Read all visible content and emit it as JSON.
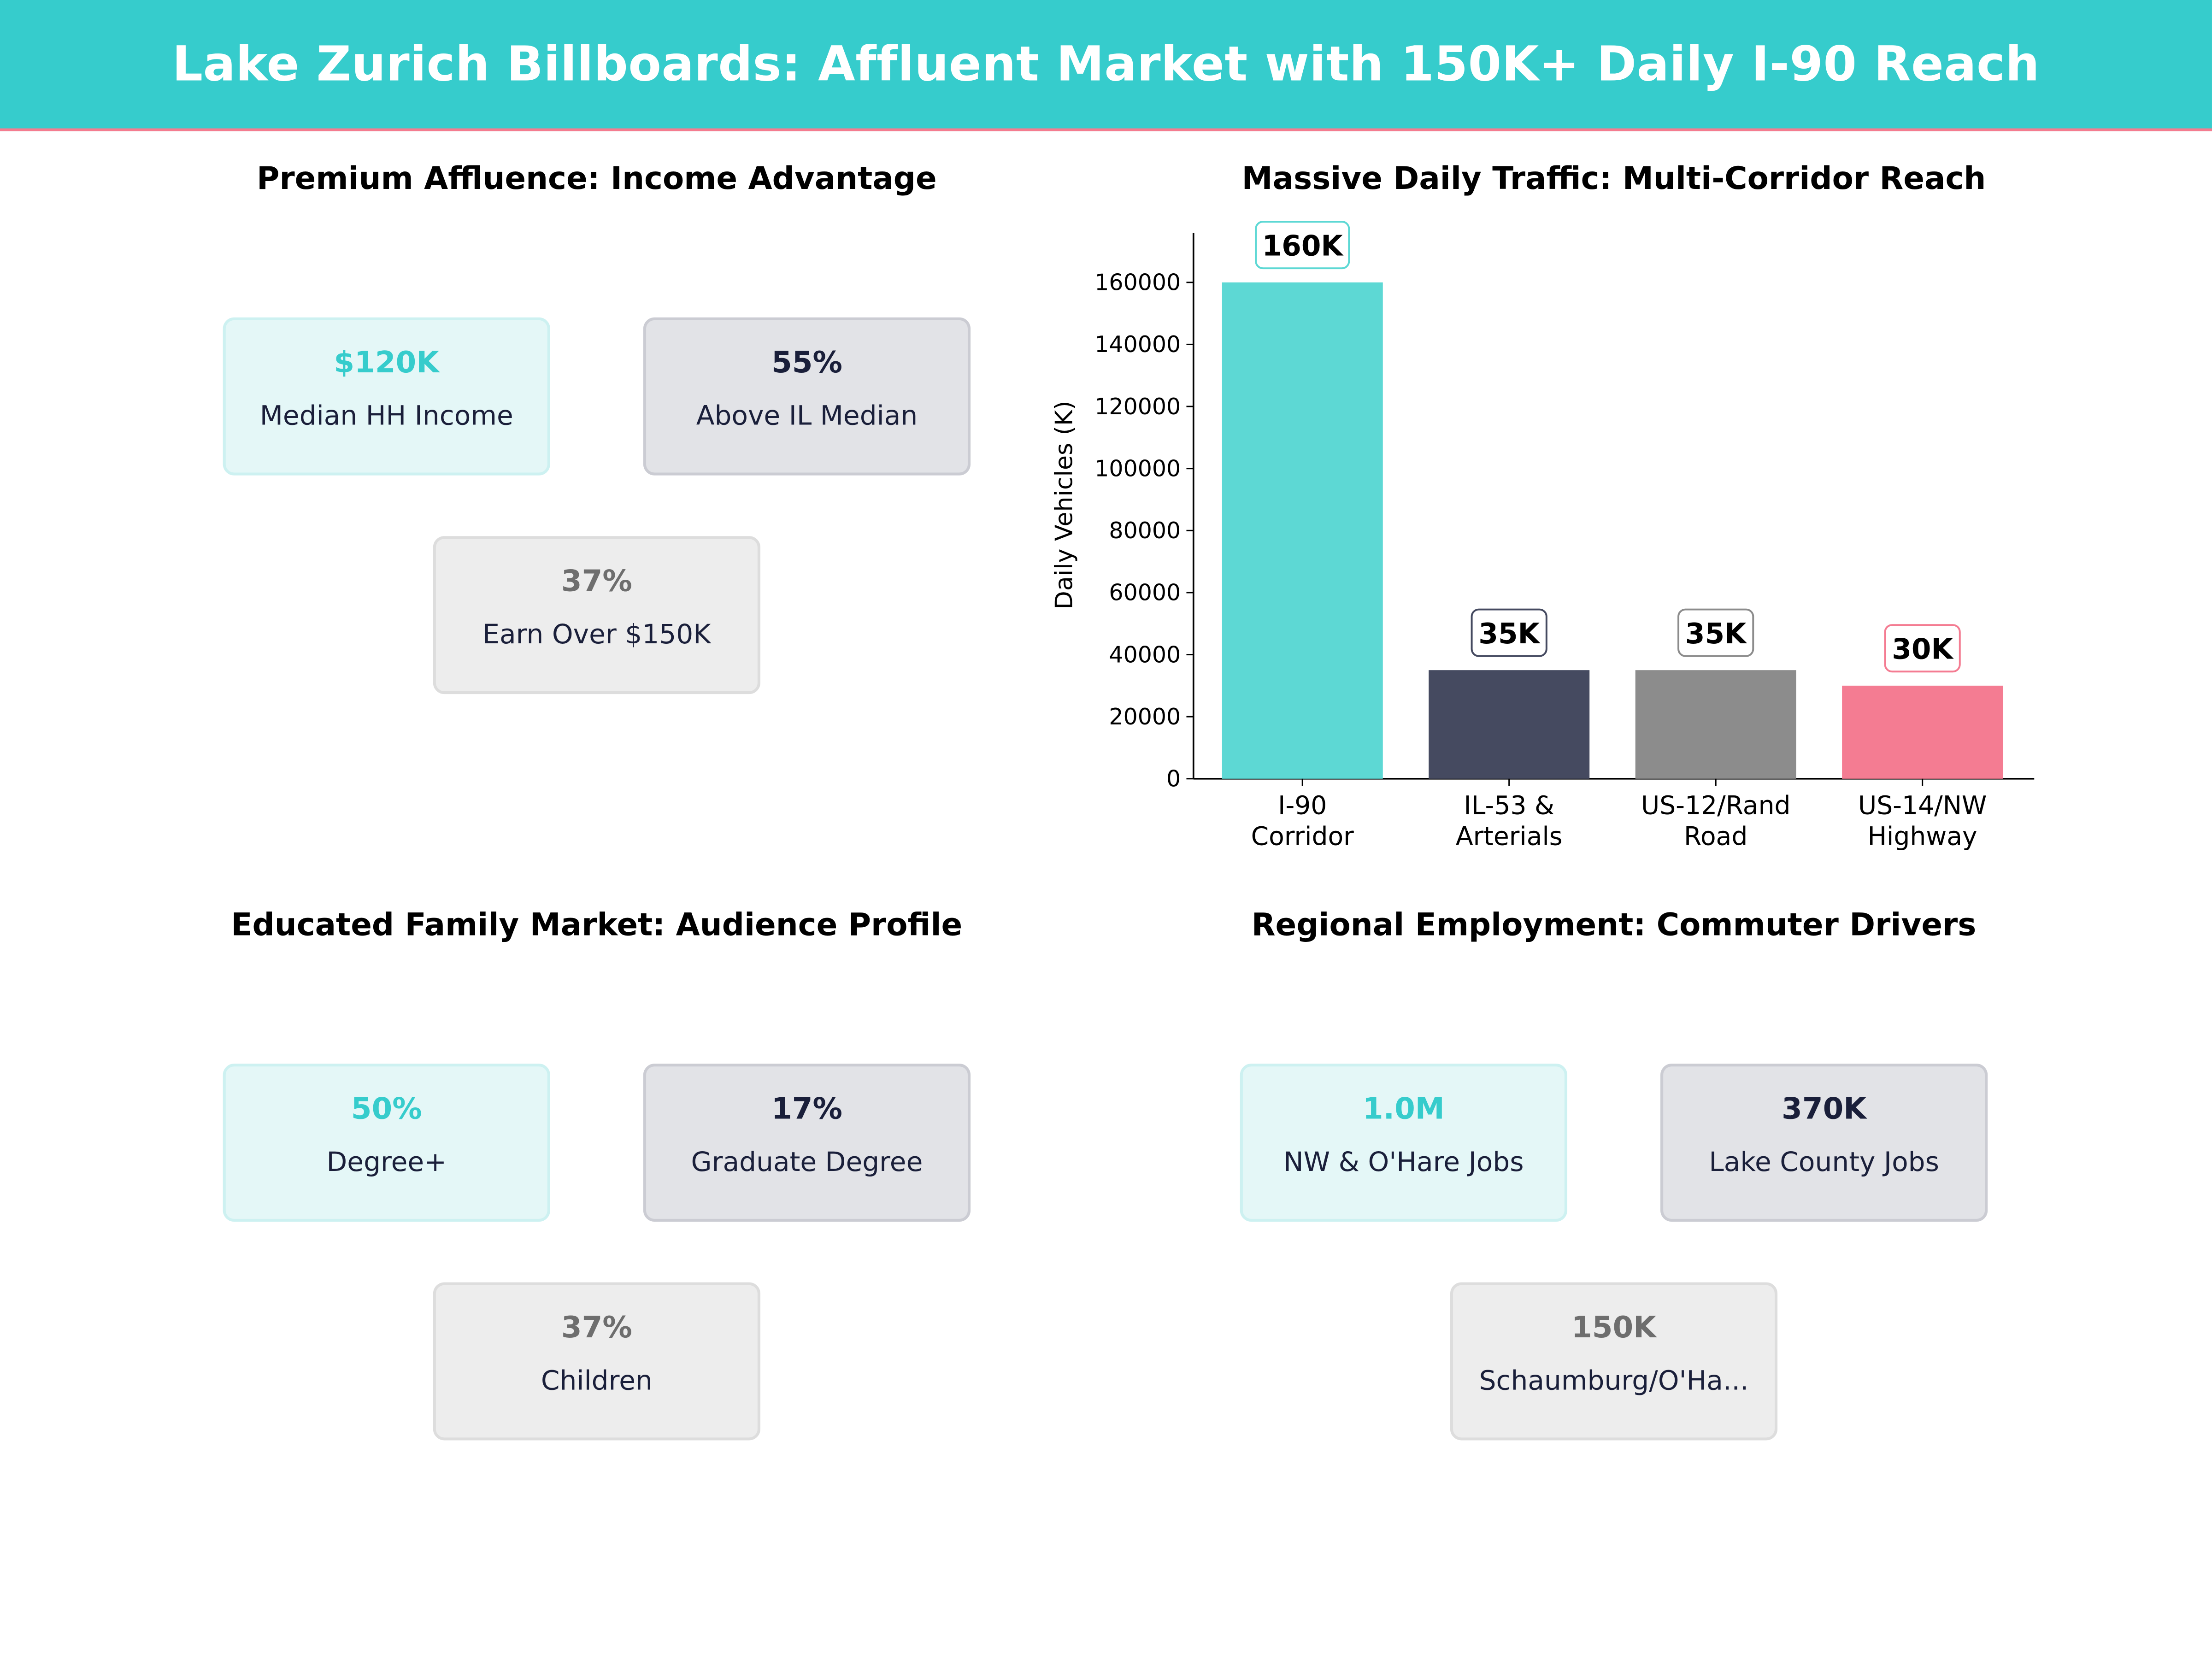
{
  "header": {
    "title": "Lake Zurich Billboards: Affluent Market with 150K+ Daily I-90 Reach"
  },
  "panels": {
    "affluence": {
      "title": "Premium Affluence: Income Advantage",
      "cards": [
        {
          "value": "$120K",
          "label": "Median HH Income"
        },
        {
          "value": "55%",
          "label": "Above IL Median"
        },
        {
          "value": "37%",
          "label": "Earn Over $150K"
        }
      ]
    },
    "education": {
      "title": "Educated Family Market: Audience Profile",
      "cards": [
        {
          "value": "50%",
          "label": "Degree+"
        },
        {
          "value": "17%",
          "label": "Graduate Degree"
        },
        {
          "value": "37%",
          "label": "Children"
        }
      ]
    },
    "employment": {
      "title": "Regional Employment: Commuter Drivers",
      "cards": [
        {
          "value": "1.0M",
          "label": "NW & O'Hare Jobs"
        },
        {
          "value": "370K",
          "label": "Lake County Jobs"
        },
        {
          "value": "150K",
          "label": "Schaumburg/O'Ha..."
        }
      ]
    }
  },
  "chart_data": {
    "type": "bar",
    "title": "Massive Daily Traffic: Multi-Corridor Reach",
    "xlabel": "",
    "ylabel": "Daily Vehicles (K)",
    "categories": [
      [
        "I-90",
        "Corridor"
      ],
      [
        "IL-53 &",
        "Arterials"
      ],
      [
        "US-12/Rand",
        "Road"
      ],
      [
        "US-14/NW",
        "Highway"
      ]
    ],
    "values": [
      160000,
      35000,
      35000,
      30000
    ],
    "data_labels": [
      "160K",
      "35K",
      "35K",
      "30K"
    ],
    "colors": [
      "#5DD8D4",
      "#454A60",
      "#8C8C8C",
      "#F47C92"
    ],
    "label_border_colors": [
      "#5DD8D4",
      "#454A60",
      "#8C8C8C",
      "#F47C92"
    ],
    "yticks": [
      0,
      20000,
      40000,
      60000,
      80000,
      100000,
      120000,
      140000,
      160000
    ],
    "ylim": [
      0,
      176000
    ],
    "grid": false
  }
}
